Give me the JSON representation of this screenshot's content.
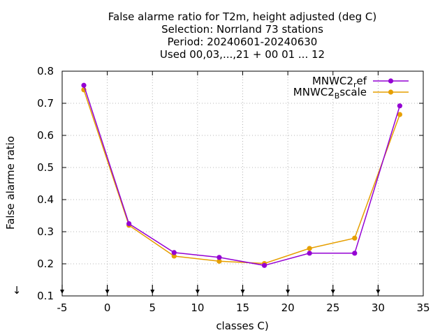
{
  "chart_data": {
    "type": "line",
    "title_lines": [
      "False alarme ratio  for T2m, height adjusted (deg C)",
      "Selection: Norrland     73 stations",
      "Period: 20240601-20240630",
      "Used 00,03,...,21 + 00 01 ... 12"
    ],
    "xlabel": "classes C)",
    "ylabel": "False alarme ratio",
    "xlim": [
      -5,
      35
    ],
    "ylim": [
      0.1,
      0.8
    ],
    "xticks": [
      -5,
      0,
      5,
      10,
      15,
      20,
      25,
      30,
      35
    ],
    "yticks": [
      0.1,
      0.2,
      0.3,
      0.4,
      0.5,
      0.6,
      0.7,
      0.8
    ],
    "ytick_labels": [
      "0.1",
      "0.2",
      "0.3",
      "0.4",
      "0.5",
      "0.6",
      "0.7",
      "0.8"
    ],
    "grid": true,
    "legend_position": "top-right",
    "series": [
      {
        "name": "MNWC2_ref",
        "legend_main": "MNWC2",
        "legend_sub": "r",
        "legend_rest": "ef",
        "color": "#9400d3",
        "x": [
          -2.6,
          2.4,
          7.4,
          12.4,
          17.4,
          22.4,
          27.4,
          32.4
        ],
        "y": [
          0.756,
          0.325,
          0.235,
          0.22,
          0.195,
          0.233,
          0.233,
          0.692
        ]
      },
      {
        "name": "MNWC2_Bscale",
        "legend_main": "MNWC2",
        "legend_sub": "B",
        "legend_rest": "scale",
        "color": "#e69f00",
        "x": [
          -2.6,
          2.4,
          7.4,
          12.4,
          17.4,
          22.4,
          27.4,
          32.4
        ],
        "y": [
          0.742,
          0.32,
          0.224,
          0.208,
          0.201,
          0.248,
          0.28,
          0.665
        ]
      }
    ],
    "axis_markers_x": [
      -5,
      0,
      5,
      10,
      15,
      20,
      25,
      30
    ],
    "marker_arrow": "↓"
  }
}
